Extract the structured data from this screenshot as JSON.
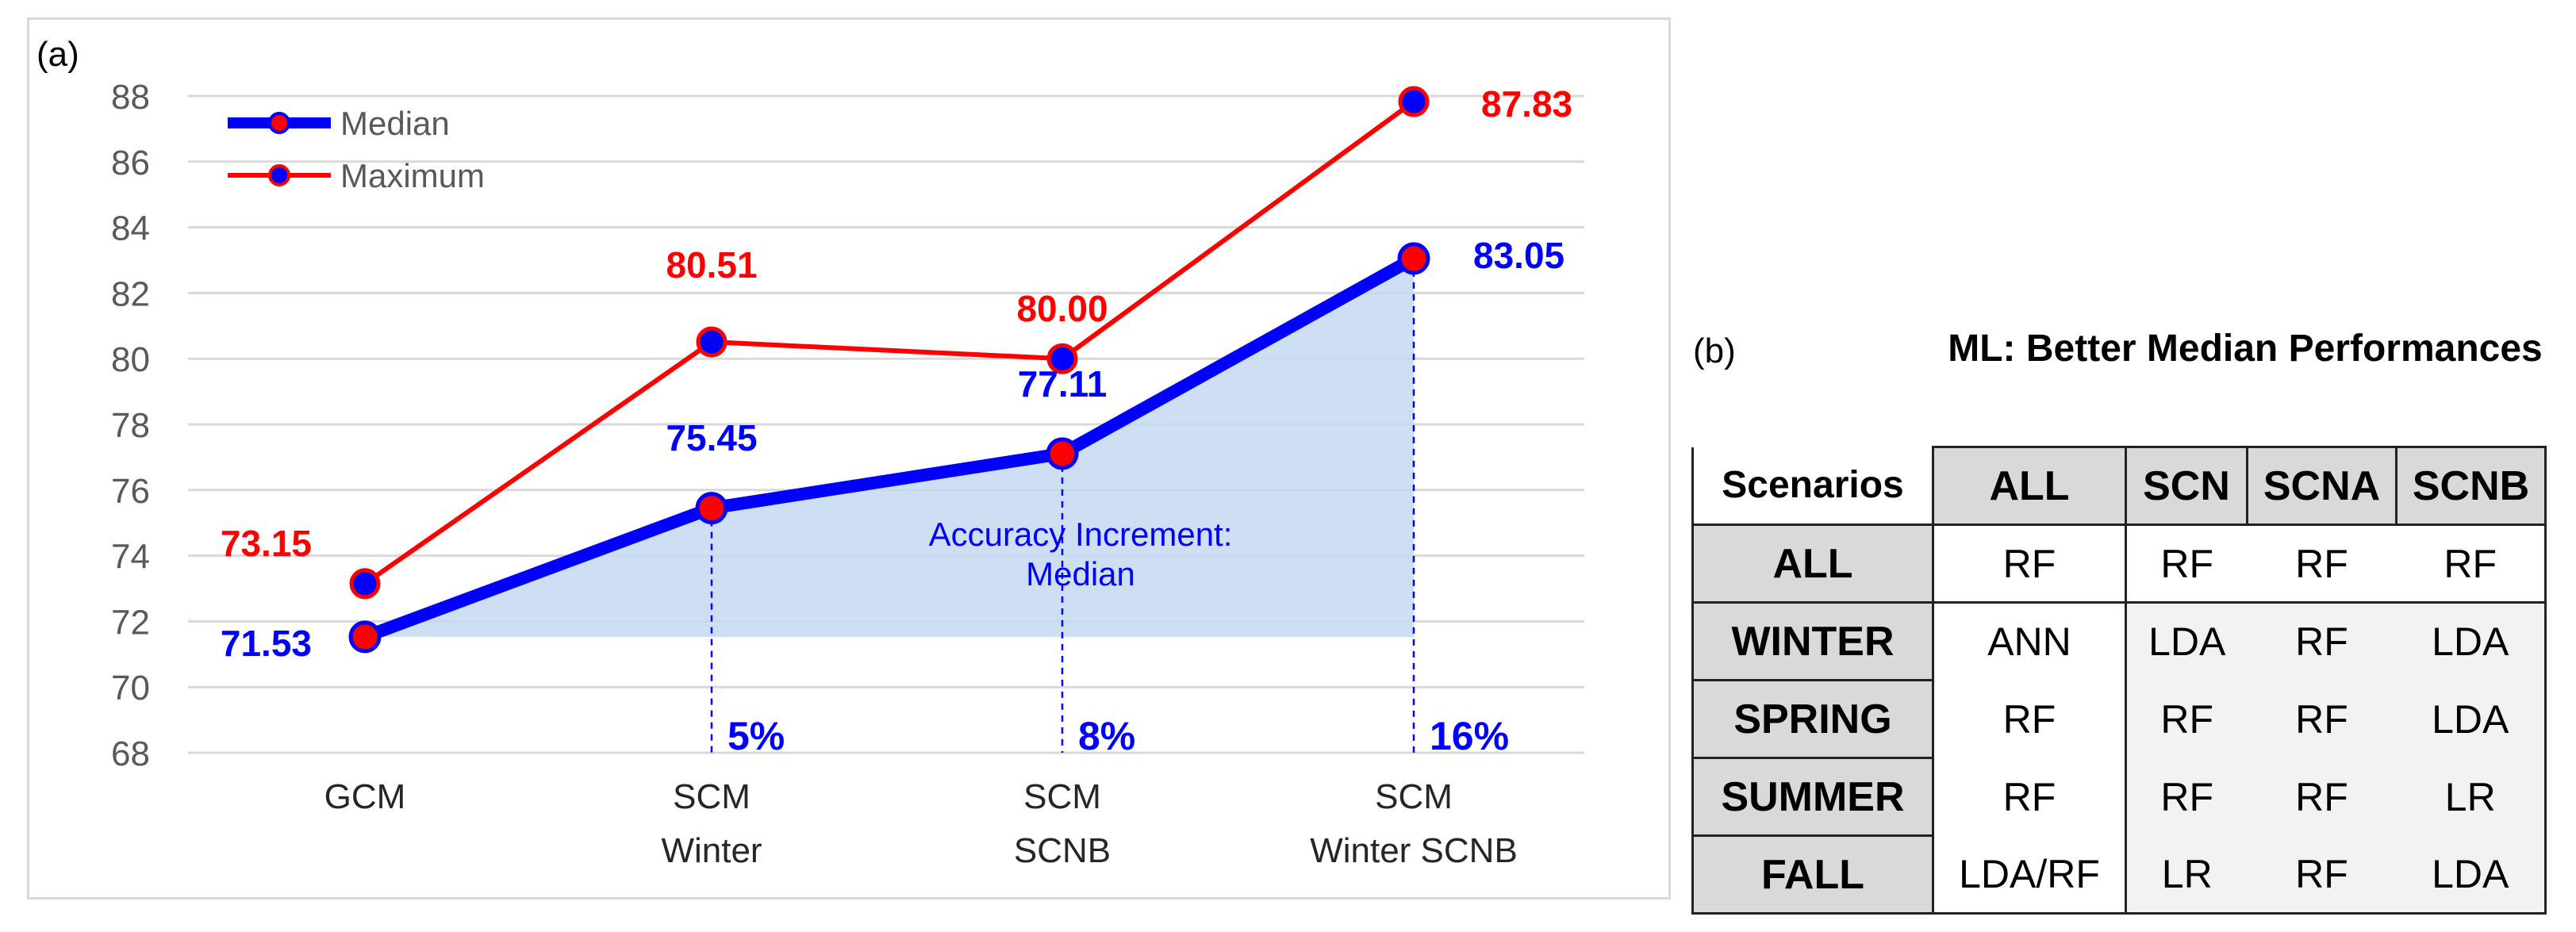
{
  "panel_a_label": "(a)",
  "panel_b_label": "(b)",
  "chart_data": {
    "type": "line",
    "categories": [
      [
        "GCM"
      ],
      [
        "SCM",
        "Winter"
      ],
      [
        "SCM",
        "SCNB"
      ],
      [
        "SCM",
        "Winter SCNB"
      ]
    ],
    "ylim": [
      68,
      88
    ],
    "yticks": [
      68,
      70,
      72,
      74,
      76,
      78,
      80,
      82,
      84,
      86,
      88
    ],
    "grid": true,
    "legend_position": "top-left",
    "series": [
      {
        "name": "Median",
        "values": [
          71.53,
          75.45,
          77.11,
          83.05
        ],
        "labels": [
          "71.53",
          "75.45",
          "77.11",
          "83.05"
        ],
        "color": "#0000ff",
        "marker_fill": "#ff0000"
      },
      {
        "name": "Maximum",
        "values": [
          73.15,
          80.51,
          80.0,
          87.83
        ],
        "labels": [
          "73.15",
          "80.51",
          "80.00",
          "87.83"
        ],
        "color": "#ff0000",
        "marker_fill": "#0000ff"
      }
    ],
    "shaded_area": {
      "label": [
        "Accuracy Increment:",
        "Median"
      ],
      "color": "#c5d9f1"
    },
    "increments": [
      {
        "category_index": 1,
        "label": "5%"
      },
      {
        "category_index": 2,
        "label": "8%"
      },
      {
        "category_index": 3,
        "label": "16%"
      }
    ]
  },
  "table": {
    "title": "ML: Better Median Performances",
    "corner": "Scenarios",
    "columns": [
      "ALL",
      "SCN",
      "SCNA",
      "SCNB"
    ],
    "rows": [
      {
        "label": "ALL",
        "cells": [
          "RF",
          "RF",
          "RF",
          "RF"
        ]
      },
      {
        "label": "WINTER",
        "cells": [
          "ANN",
          "LDA",
          "RF",
          "LDA"
        ]
      },
      {
        "label": "SPRING",
        "cells": [
          "RF",
          "RF",
          "RF",
          "LDA"
        ]
      },
      {
        "label": "SUMMER",
        "cells": [
          "RF",
          "RF",
          "RF",
          "LR"
        ]
      },
      {
        "label": "FALL",
        "cells": [
          "LDA/RF",
          "LR",
          "RF",
          "LDA"
        ]
      }
    ]
  }
}
